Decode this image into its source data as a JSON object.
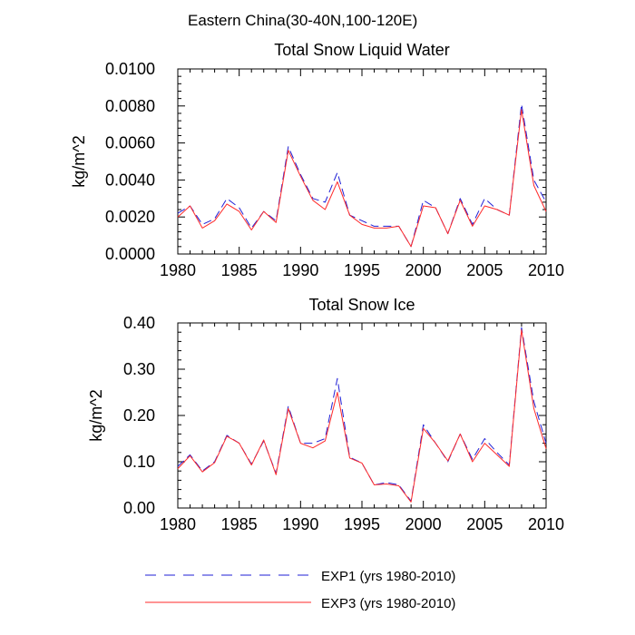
{
  "figure_title": "Eastern China(30-40N,100-120E)",
  "legend": [
    {
      "label": "EXP1 (yrs 1980-2010)",
      "color": "#1f1fd6",
      "style": "dashed"
    },
    {
      "label": "EXP3 (yrs 1980-2010)",
      "color": "#ff2a2a",
      "style": "solid"
    }
  ],
  "chart_data": [
    {
      "type": "line",
      "title": "Total Snow Liquid Water",
      "xlabel": "",
      "ylabel": "kg/m^2",
      "xlim": [
        1980,
        2010
      ],
      "ylim": [
        0,
        0.01
      ],
      "xticks": [
        "1980",
        "1985",
        "1990",
        "1995",
        "2000",
        "2005",
        "2010"
      ],
      "yticks": [
        "0.0000",
        "0.0020",
        "0.0040",
        "0.0060",
        "0.0080",
        "0.0100"
      ],
      "x": [
        1980,
        1981,
        1982,
        1983,
        1984,
        1985,
        1986,
        1987,
        1988,
        1989,
        1990,
        1991,
        1992,
        1993,
        1994,
        1995,
        1996,
        1997,
        1998,
        1999,
        2000,
        2001,
        2002,
        2003,
        2004,
        2005,
        2006,
        2007,
        2008,
        2009,
        2010
      ],
      "series": [
        {
          "name": "EXP1 (yrs 1980-2010)",
          "values": [
            0.0022,
            0.0026,
            0.0016,
            0.0019,
            0.003,
            0.0025,
            0.0014,
            0.0023,
            0.0018,
            0.0058,
            0.0043,
            0.003,
            0.0028,
            0.0044,
            0.0021,
            0.0018,
            0.0015,
            0.0015,
            0.0015,
            0.0004,
            0.0029,
            0.0025,
            0.0011,
            0.003,
            0.0016,
            0.003,
            0.0024,
            0.0021,
            0.0081,
            0.004,
            0.0028
          ]
        },
        {
          "name": "EXP3 (yrs 1980-2010)",
          "values": [
            0.002,
            0.0026,
            0.0014,
            0.0018,
            0.0027,
            0.0023,
            0.0013,
            0.0023,
            0.0017,
            0.0056,
            0.0042,
            0.0029,
            0.0024,
            0.0039,
            0.0021,
            0.0016,
            0.0014,
            0.0014,
            0.0015,
            0.0004,
            0.0026,
            0.0025,
            0.0011,
            0.0029,
            0.0015,
            0.0026,
            0.0024,
            0.0021,
            0.0078,
            0.0037,
            0.0023
          ]
        }
      ]
    },
    {
      "type": "line",
      "title": "Total Snow Ice",
      "xlabel": "",
      "ylabel": "kg/m^2",
      "xlim": [
        1980,
        2010
      ],
      "ylim": [
        0,
        0.4
      ],
      "xticks": [
        "1980",
        "1985",
        "1990",
        "1995",
        "2000",
        "2005",
        "2010"
      ],
      "yticks": [
        "0.00",
        "0.10",
        "0.20",
        "0.30",
        "0.40"
      ],
      "x": [
        1980,
        1981,
        1982,
        1983,
        1984,
        1985,
        1986,
        1987,
        1988,
        1989,
        1990,
        1991,
        1992,
        1993,
        1994,
        1995,
        1996,
        1997,
        1998,
        1999,
        2000,
        2001,
        2002,
        2003,
        2004,
        2005,
        2006,
        2007,
        2008,
        2009,
        2010
      ],
      "series": [
        {
          "name": "EXP1 (yrs 1980-2010)",
          "values": [
            0.09,
            0.115,
            0.08,
            0.1,
            0.157,
            0.14,
            0.095,
            0.145,
            0.075,
            0.22,
            0.14,
            0.14,
            0.15,
            0.28,
            0.11,
            0.097,
            0.05,
            0.055,
            0.05,
            0.015,
            0.18,
            0.14,
            0.1,
            0.16,
            0.105,
            0.15,
            0.12,
            0.093,
            0.39,
            0.23,
            0.14
          ]
        },
        {
          "name": "EXP3 (yrs 1980-2010)",
          "values": [
            0.085,
            0.113,
            0.078,
            0.098,
            0.155,
            0.14,
            0.093,
            0.147,
            0.072,
            0.215,
            0.14,
            0.13,
            0.145,
            0.25,
            0.108,
            0.097,
            0.05,
            0.052,
            0.048,
            0.013,
            0.172,
            0.14,
            0.102,
            0.16,
            0.1,
            0.14,
            0.115,
            0.09,
            0.385,
            0.215,
            0.128
          ]
        }
      ]
    }
  ]
}
